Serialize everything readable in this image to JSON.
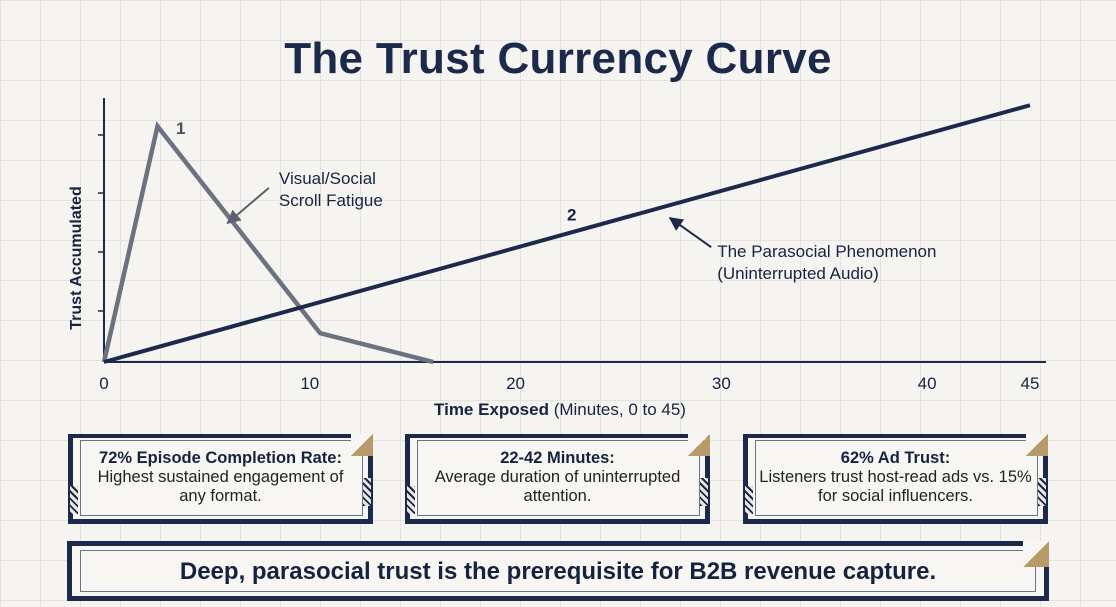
{
  "chart_data": {
    "type": "line",
    "title": "The Trust Currency Curve",
    "xlabel_bold": "Time Exposed",
    "xlabel_rest": " (Minutes, 0 to 45)",
    "ylabel": "Trust Accumulated",
    "xticks": [
      0,
      10,
      20,
      30,
      40,
      45
    ],
    "xlim": [
      0,
      45
    ],
    "ylim": [
      0,
      100
    ],
    "grid": true,
    "series": [
      {
        "name": "Visual/Social Scroll Fatigue",
        "color": "#6b7280",
        "x": [
          0,
          2.6,
          10.5,
          16
        ],
        "y": [
          0,
          90,
          11,
          0
        ]
      },
      {
        "name": "The Parasocial Phenomenon (Uninterrupted Audio)",
        "color": "#1b2a4a",
        "x": [
          0,
          45
        ],
        "y": [
          0,
          98
        ]
      }
    ],
    "annotations": [
      {
        "text": "1",
        "x": 3.5,
        "y": 87
      },
      {
        "text": "2",
        "x": 22.5,
        "y": 54
      },
      {
        "lines": [
          "Visual/Social",
          "Scroll Fatigue"
        ],
        "x": 8.5,
        "y": 68,
        "arrow_to": [
          6.0,
          53
        ]
      },
      {
        "lines": [
          "The Parasocial Phenomenon",
          "(Uninterrupted Audio)"
        ],
        "x": 29.8,
        "y": 40,
        "arrow_to": [
          27.5,
          55
        ]
      }
    ]
  },
  "cards": [
    {
      "heading": "72% Episode Completion Rate:",
      "body": "Highest sustained engagement of any format."
    },
    {
      "heading": "22-42 Minutes:",
      "body": "Average duration of uninterrupted attention."
    },
    {
      "heading": "62% Ad Trust:",
      "body": "Listeners trust host-read ads vs. 15% for social influencers."
    }
  ],
  "banner": {
    "text": "Deep, parasocial trust is the prerequisite for B2B revenue capture."
  }
}
